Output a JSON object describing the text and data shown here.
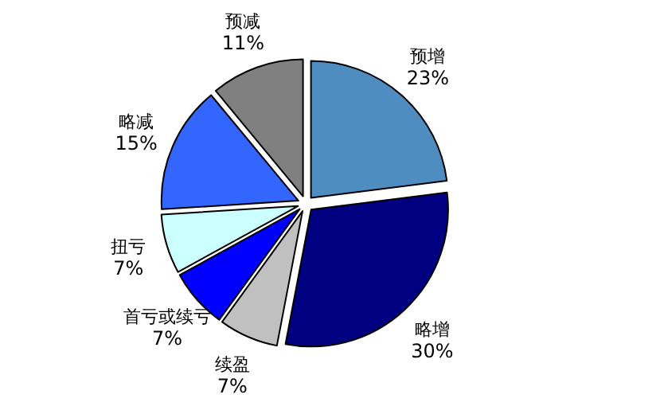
{
  "chart_data": {
    "type": "pie",
    "categories": [
      "预增",
      "略增",
      "续盈",
      "首亏或续亏",
      "扭亏",
      "略减",
      "预减"
    ],
    "values": [
      23,
      30,
      7,
      7,
      7,
      15,
      11
    ],
    "value_labels": [
      "23%",
      "30%",
      "7%",
      "7%",
      "7%",
      "15%",
      "11%"
    ],
    "colors": [
      "#4f8cc0",
      "#000080",
      "#c0c0c0",
      "#0000ff",
      "#ccffff",
      "#3366ff",
      "#808080"
    ]
  }
}
